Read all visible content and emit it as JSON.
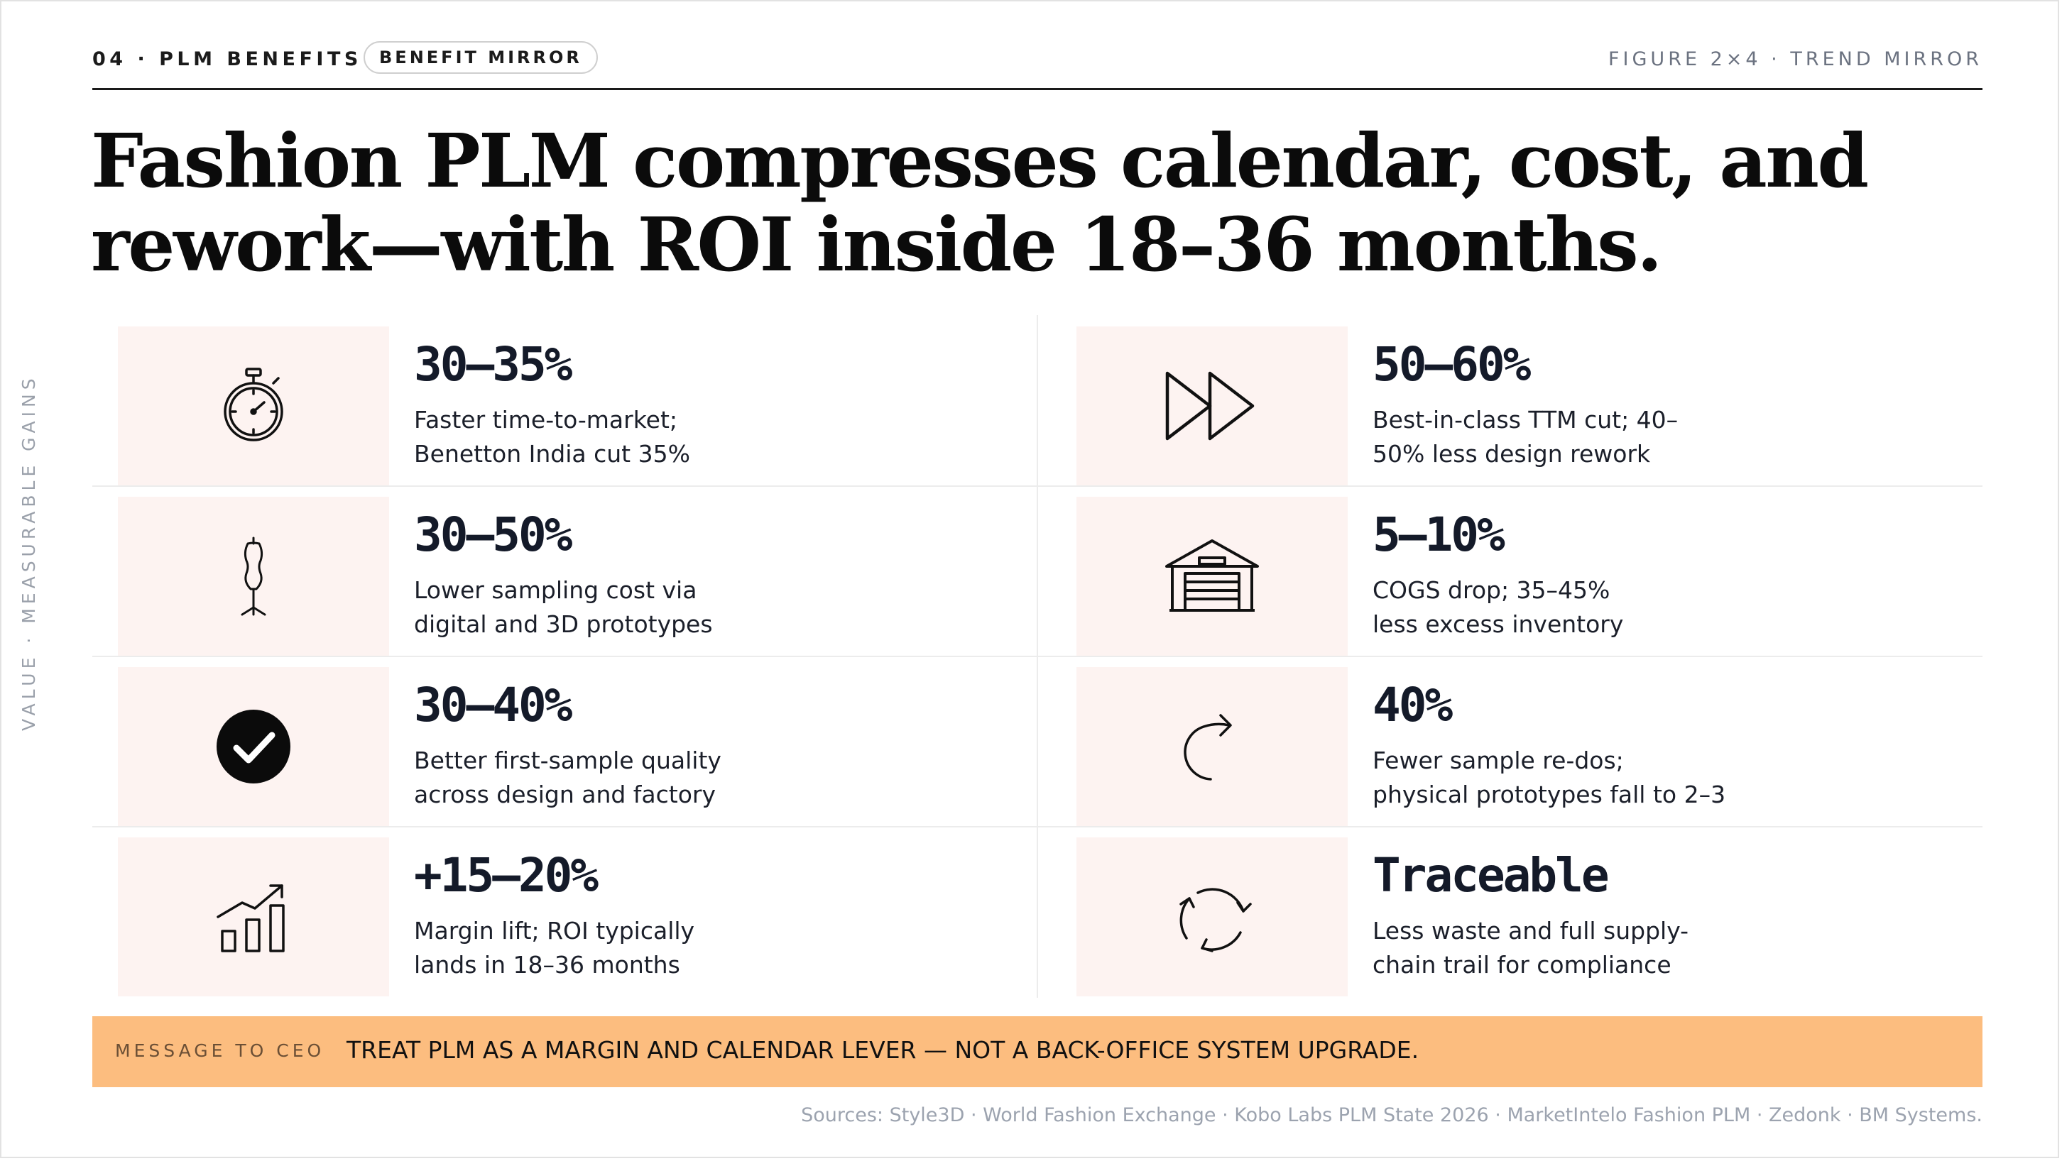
{
  "header": {
    "section_label": "04 · PLM BENEFITS",
    "badge": "BENEFIT MIRROR",
    "figure_label": "FIGURE 2×4 · TREND MIRROR"
  },
  "headline": {
    "line1": "Fashion PLM compresses calendar, cost, and",
    "line2": "rework—with ROI inside 18–36 months."
  },
  "side_label": "VALUE · MEASURABLE GAINS",
  "benefits": [
    {
      "icon": "stopwatch-icon",
      "stat": "30–35%",
      "line1": "Faster time-to-market;",
      "line2": "Benetton India cut 35%"
    },
    {
      "icon": "fast-forward-icon",
      "stat": "50–60%",
      "line1": "Best-in-class TTM cut; 40–",
      "line2": "50% less design rework"
    },
    {
      "icon": "dress-form-icon",
      "stat": "30–50%",
      "line1": "Lower sampling cost via",
      "line2": "digital and 3D prototypes"
    },
    {
      "icon": "warehouse-icon",
      "stat": "5–10%",
      "line1": "COGS drop; 35–45%",
      "line2": "less excess inventory"
    },
    {
      "icon": "check-circle-icon",
      "stat": "30–40%",
      "line1": "Better first-sample quality",
      "line2": "across design and factory"
    },
    {
      "icon": "redo-arrow-icon",
      "stat": "40%",
      "line1": "Fewer sample re-dos;",
      "line2": "physical prototypes fall to 2–3"
    },
    {
      "icon": "growth-chart-icon",
      "stat": "+15–20%",
      "line1": "Margin lift; ROI typically",
      "line2": "lands in 18–36 months"
    },
    {
      "icon": "cycle-arrows-icon",
      "stat": "Traceable",
      "line1": "Less waste and full supply-",
      "line2": "chain trail for compliance"
    }
  ],
  "ceo_message": {
    "label": "MESSAGE TO CEO",
    "text": "TREAT PLM AS A MARGIN AND CALENDAR LEVER — NOT A BACK-OFFICE SYSTEM UPGRADE."
  },
  "sources": "Sources: Style3D · World Fashion Exchange · Kobo Labs PLM State 2026 · MarketIntelo Fashion PLM · Zedonk · BM Systems.",
  "colors": {
    "accent_banner": "#fcbd7f",
    "icon_background": "#fdf3f1",
    "stat_text": "#141a29"
  }
}
